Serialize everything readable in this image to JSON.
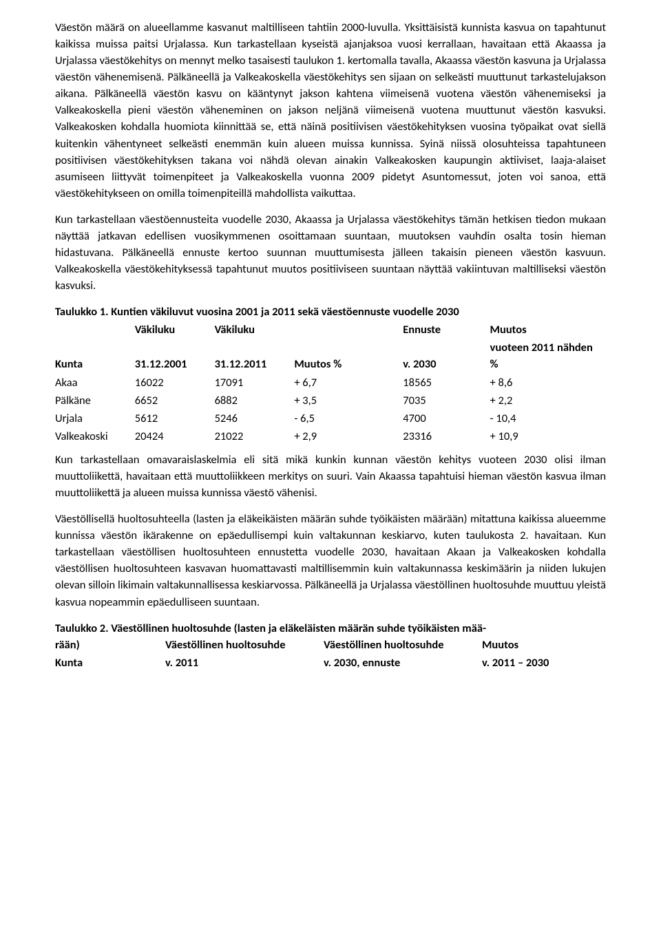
{
  "paragraphs": {
    "p1": "Väestön määrä on alueellamme kasvanut maltilliseen tahtiin 2000-luvulla. Yksittäisistä kunnista kasvua on tapahtunut kaikissa muissa paitsi Urjalassa. Kun tarkastellaan kyseistä ajanjaksoa vuosi kerrallaan, havaitaan että Akaassa ja Urjalassa väestökehitys on mennyt melko tasaisesti taulukon 1. kertomalla tavalla, Akaassa väestön kasvuna ja Urjalassa väestön vähenemisenä. Pälkäneellä ja Valkeakoskella väestökehitys sen sijaan on selkeästi muuttunut tarkastelujakson aikana. Pälkäneellä väestön kasvu on kääntynyt jakson kahtena viimeisenä vuotena väestön vähenemiseksi ja Valkeakoskella pieni väestön väheneminen on jakson neljänä viimeisenä vuotena muuttunut väestön kasvuksi. Valkeakosken kohdalla huomiota kiinnittää se, että näinä positiivisen väestökehityksen vuosina työpaikat ovat siellä kuitenkin vähentyneet selkeästi enemmän kuin alueen muissa kunnissa. Syinä niissä olosuhteissa tapahtuneen positiivisen väestökehityksen takana voi nähdä olevan ainakin Valkeakosken kaupungin aktiiviset, laaja-alaiset asumiseen liittyvät toimenpiteet ja Valkeakoskella vuonna 2009 pidetyt Asuntomessut, joten voi sanoa, että väestökehitykseen on omilla toimenpiteillä mahdollista vaikuttaa.",
    "p2": "Kun tarkastellaan väestöennusteita vuodelle 2030, Akaassa ja Urjalassa väestökehitys tämän hetkisen tiedon mukaan näyttää jatkavan edellisen vuosikymmenen osoittamaan suuntaan, muutoksen vauhdin osalta tosin hieman hidastuvana. Pälkäneellä ennuste kertoo suunnan muuttumisesta jälleen takaisin pieneen väestön kasvuun. Valkeakoskella väestökehityksessä tapahtunut muutos positiiviseen suuntaan näyttää vakiintuvan maltilliseksi väestön kasvuksi.",
    "p3": "Kun tarkastellaan omavaraislaskelmia eli sitä mikä kunkin kunnan väestön kehitys vuoteen 2030 olisi ilman muuttoliikettä, havaitaan että muuttoliikkeen merkitys on suuri. Vain Akaassa tapahtuisi hieman väestön kasvua ilman muuttoliikettä ja alueen muissa kunnissa väestö vähenisi.",
    "p4": "Väestöllisellä huoltosuhteella (lasten ja eläkeikäisten määrän suhde työikäisten määrään) mitattuna kaikissa alueemme kunnissa väestön ikärakenne on epäedullisempi kuin valtakunnan keskiarvo, kuten taulukosta 2. havaitaan. Kun tarkastellaan väestöllisen huoltosuhteen ennustetta vuodelle 2030, havaitaan Akaan ja Valkeakosken kohdalla väestöllisen huoltosuhteen kasvavan huomattavasti maltillisemmin kuin valtakunnassa keskimäärin ja niiden lukujen olevan silloin likimain valtakunnallisessa keskiarvossa. Pälkäneellä ja Urjalassa väestöllinen huoltosuhde muuttuu yleistä kasvua nopeammin epäedulliseen suuntaan."
  },
  "table1": {
    "caption": "Taulukko 1. Kuntien väkiluvut vuosina 2001 ja 2011 sekä väestöennuste vuodelle 2030",
    "header_top": {
      "c2": "Väkiluku",
      "c3": "Väkiluku",
      "c4": "Ennuste",
      "c5": "Muutos"
    },
    "header_bot": {
      "c1": "Kunta",
      "c2": "31.12.2001",
      "c3": "31.12.2011",
      "mid": "Muutos %",
      "c4": "v. 2030",
      "c5": "vuoteen 2011 nähden %"
    },
    "rows": [
      {
        "kunta": "Akaa",
        "v2001": "16022",
        "v2011": "17091",
        "m": "+ 6,7",
        "v2030": "18565",
        "m2030": "+ 8,6"
      },
      {
        "kunta": "Pälkäne",
        "v2001": "6652",
        "v2011": "6882",
        "m": "+ 3,5",
        "v2030": "7035",
        "m2030": "+ 2,2"
      },
      {
        "kunta": "Urjala",
        "v2001": "5612",
        "v2011": "5246",
        "m": "- 6,5",
        "v2030": "4700",
        "m2030": "- 10,4"
      },
      {
        "kunta": "Valkeakoski",
        "v2001": "20424",
        "v2011": "21022",
        "m": "+ 2,9",
        "v2030": "23316",
        "m2030": "+ 10,9"
      }
    ]
  },
  "table2": {
    "caption_line1": "Taulukko 2. Väestöllinen huoltosuhde (lasten ja eläkeläisten määrän suhde työikäisten mää-",
    "caption_line2a": "rään)",
    "header_top": {
      "c2": "Väestöllinen huoltosuhde",
      "c3": "Väestöllinen huoltosuhde",
      "c4": "Muutos"
    },
    "header_bot": {
      "c1": "Kunta",
      "c2": "v. 2011",
      "c3": "v. 2030, ennuste",
      "c4": "v. 2011 – 2030"
    }
  }
}
